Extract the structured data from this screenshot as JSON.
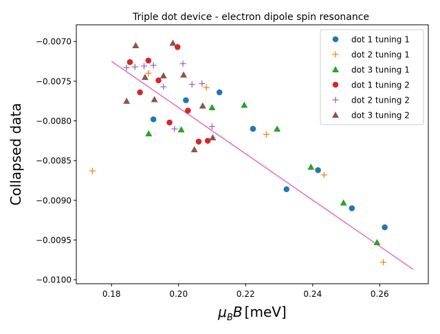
{
  "chart_data": {
    "type": "scatter",
    "title": "Triple dot device - electron dipole spin resonance",
    "xlabel_mu": "μ",
    "xlabel_sub": "B",
    "xlabel_rest": "B",
    "xlabel_unit": "[meV]",
    "ylabel": "Collapsed data",
    "xlim": [
      0.1695,
      0.2745
    ],
    "ylim": [
      -0.01005,
      -0.00679
    ],
    "xticks": [
      0.18,
      0.2,
      0.22,
      0.24,
      0.26
    ],
    "xtick_labels": [
      "0.18",
      "0.20",
      "0.22",
      "0.24",
      "0.26"
    ],
    "yticks": [
      -0.01,
      -0.0095,
      -0.009,
      -0.0085,
      -0.008,
      -0.0075,
      -0.007
    ],
    "ytick_labels": [
      "−0.0100",
      "−0.0095",
      "−0.0090",
      "−0.0085",
      "−0.0080",
      "−0.0075",
      "−0.0070"
    ],
    "legend_position": "upper right",
    "series": [
      {
        "name": "dot 1 tuning 1",
        "marker": "circle",
        "color": "#1f77b4",
        "points": [
          [
            0.1925,
            -0.00798
          ],
          [
            0.2022,
            -0.00774
          ],
          [
            0.2122,
            -0.00764
          ],
          [
            0.2222,
            -0.0081
          ],
          [
            0.2322,
            -0.00886
          ],
          [
            0.2416,
            -0.00862
          ],
          [
            0.2517,
            -0.0091
          ],
          [
            0.2615,
            -0.00934
          ]
        ]
      },
      {
        "name": "dot 2 tuning 1",
        "marker": "plus",
        "color": "#ff7f0e",
        "points": [
          [
            0.1743,
            -0.00863
          ],
          [
            0.191,
            -0.0074
          ],
          [
            0.2083,
            -0.00758
          ],
          [
            0.2262,
            -0.00817
          ],
          [
            0.2434,
            -0.00868
          ],
          [
            0.2611,
            -0.00978
          ]
        ]
      },
      {
        "name": "dot 3 tuning 1",
        "marker": "triangle",
        "color": "#2ca02c",
        "points": [
          [
            0.1911,
            -0.00816
          ],
          [
            0.2008,
            -0.00811
          ],
          [
            0.21,
            -0.00783
          ],
          [
            0.2196,
            -0.0078
          ],
          [
            0.2294,
            -0.0081
          ],
          [
            0.2395,
            -0.00858
          ],
          [
            0.2492,
            -0.00903
          ],
          [
            0.2592,
            -0.00953
          ]
        ]
      },
      {
        "name": "dot 1 tuning 2",
        "marker": "circle",
        "color": "#d62728",
        "points": [
          [
            0.1855,
            -0.00726
          ],
          [
            0.1885,
            -0.00764
          ],
          [
            0.191,
            -0.00724
          ],
          [
            0.194,
            -0.00749
          ],
          [
            0.1973,
            -0.00802
          ],
          [
            0.1997,
            -0.00707
          ],
          [
            0.2028,
            -0.00787
          ],
          [
            0.206,
            -0.00826
          ],
          [
            0.2087,
            -0.00825
          ]
        ]
      },
      {
        "name": "dot 2 tuning 2",
        "marker": "plus",
        "color": "#9467bd",
        "points": [
          [
            0.1845,
            -0.00733
          ],
          [
            0.187,
            -0.00732
          ],
          [
            0.1897,
            -0.00731
          ],
          [
            0.1925,
            -0.0073
          ],
          [
            0.1955,
            -0.00757
          ],
          [
            0.1988,
            -0.0081
          ],
          [
            0.2013,
            -0.00728
          ],
          [
            0.204,
            -0.00754
          ],
          [
            0.207,
            -0.00753
          ],
          [
            0.21,
            -0.00807
          ]
        ]
      },
      {
        "name": "dot 3 tuning 2",
        "marker": "triangle",
        "color": "#8c564b",
        "points": [
          [
            0.1845,
            -0.00775
          ],
          [
            0.1872,
            -0.00705
          ],
          [
            0.19,
            -0.00745
          ],
          [
            0.1928,
            -0.00773
          ],
          [
            0.1955,
            -0.00743
          ],
          [
            0.1983,
            -0.00702
          ],
          [
            0.2015,
            -0.00742
          ],
          [
            0.2047,
            -0.00836
          ],
          [
            0.2072,
            -0.00781
          ],
          [
            0.2102,
            -0.00821
          ]
        ]
      }
    ],
    "fit_line": {
      "color": "#e377c2",
      "x": [
        0.18,
        0.27
      ],
      "y": [
        -0.00725,
        -0.00987
      ]
    }
  }
}
